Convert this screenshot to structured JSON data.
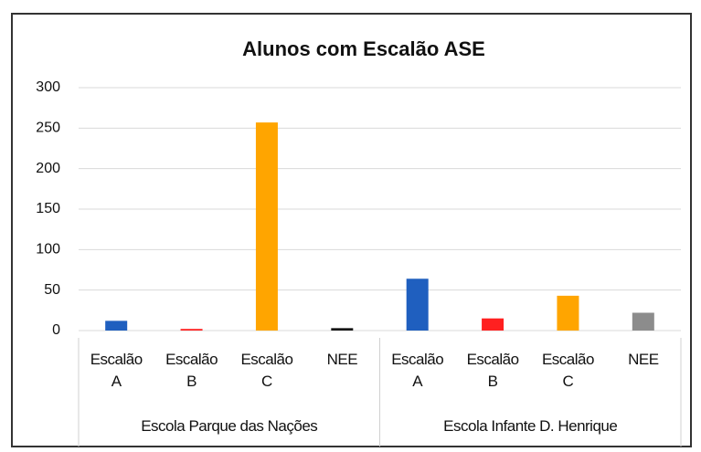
{
  "chart_data": {
    "type": "bar",
    "title": "Alunos  com Escalão ASE",
    "groups": [
      {
        "name": "Escola Parque das Nações",
        "categories": [
          "Escalão A",
          "Escalão B",
          "Escalão C",
          "NEE"
        ],
        "values": [
          12,
          2,
          257,
          3
        ],
        "colors": [
          "#1f5fbf",
          "#ff2020",
          "#ffa500",
          "#151515"
        ]
      },
      {
        "name": "Escola Infante D. Henrique",
        "categories": [
          "Escalão A",
          "Escalão B",
          "Escalão C",
          "NEE"
        ],
        "values": [
          64,
          15,
          43,
          22
        ],
        "colors": [
          "#1f5fbf",
          "#ff2020",
          "#ffa500",
          "#8c8c8c"
        ]
      }
    ],
    "ylim": [
      0,
      300
    ],
    "yticks": [
      0,
      50,
      100,
      150,
      200,
      250,
      300
    ],
    "grid": true
  }
}
